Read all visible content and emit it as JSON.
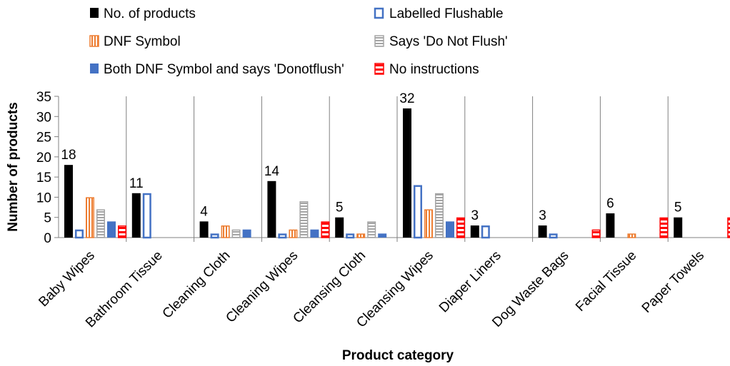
{
  "chart_data": {
    "type": "bar",
    "xlabel": "Product category",
    "ylabel": "Number of products",
    "ylim": [
      0,
      35
    ],
    "yticks": [
      0,
      5,
      10,
      15,
      20,
      25,
      30,
      35
    ],
    "grid": "vertical separators between categories",
    "legend_position": "top",
    "categories": [
      "Baby Wipes",
      "Bathroom Tissue",
      "Cleaning Cloth",
      "Cleaning Wipes",
      "Cleansing Cloth",
      "Cleansing Wipes",
      "Diaper Liners",
      "Dog Waste Bags",
      "Facial Tissue",
      "Paper Towels"
    ],
    "series": [
      {
        "name": "No. of products",
        "values": [
          18,
          11,
          4,
          14,
          5,
          32,
          3,
          3,
          6,
          5
        ],
        "color": "#000000",
        "style": "solid"
      },
      {
        "name": "Labelled Flushable",
        "values": [
          2,
          11,
          1,
          1,
          1,
          13,
          3,
          1,
          0,
          0
        ],
        "color": "#4472C4",
        "style": "outline"
      },
      {
        "name": "DNF Symbol",
        "values": [
          10,
          0,
          3,
          2,
          1,
          7,
          0,
          0,
          1,
          0
        ],
        "color": "#ED7D31",
        "style": "vertical-stripes"
      },
      {
        "name": "Says 'Do Not Flush'",
        "values": [
          7,
          0,
          2,
          9,
          4,
          11,
          0,
          0,
          0,
          0
        ],
        "color": "#A5A5A5",
        "style": "horizontal-stripes"
      },
      {
        "name": "Both DNF Symbol and says 'Donotflush'",
        "values": [
          4,
          0,
          2,
          2,
          1,
          4,
          0,
          0,
          0,
          0
        ],
        "color": "#4472C4",
        "style": "solid"
      },
      {
        "name": "No instructions",
        "values": [
          3,
          0,
          0,
          4,
          0,
          5,
          0,
          2,
          5,
          5
        ],
        "color": "#FF0000",
        "style": "horizontal-stripes"
      }
    ],
    "data_labels": [
      "18",
      "11",
      "4",
      "14",
      "5",
      "32",
      "3",
      "3",
      "6",
      "5"
    ]
  }
}
